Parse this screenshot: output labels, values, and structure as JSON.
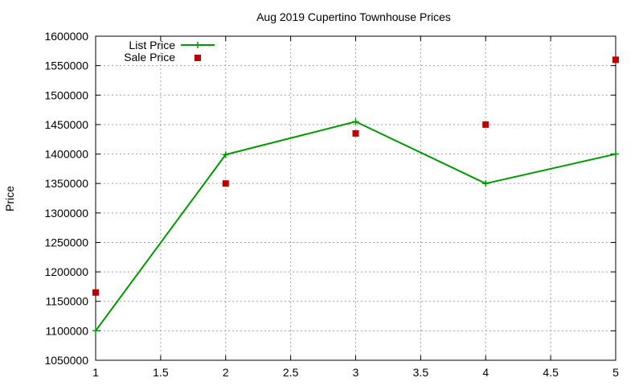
{
  "chart_data": {
    "type": "line",
    "title": "Aug 2019 Cupertino Townhouse Prices",
    "xlabel": "",
    "ylabel": "Price",
    "xlim": [
      1,
      5
    ],
    "ylim": [
      1050000,
      1600000
    ],
    "x_ticks": [
      "1",
      "1.5",
      "2",
      "2.5",
      "3",
      "3.5",
      "4",
      "4.5",
      "5"
    ],
    "y_ticks": [
      "1050000",
      "1100000",
      "1150000",
      "1200000",
      "1250000",
      "1300000",
      "1350000",
      "1400000",
      "1450000",
      "1500000",
      "1550000",
      "1600000"
    ],
    "grid": true,
    "legend_position": "top-left",
    "series": [
      {
        "name": "List Price",
        "type": "linespoints",
        "marker": "plus",
        "color": "#009900",
        "x": [
          1,
          2,
          3,
          4,
          5
        ],
        "y": [
          1100000,
          1399000,
          1455000,
          1350000,
          1400000
        ]
      },
      {
        "name": "Sale Price",
        "type": "points",
        "marker": "square",
        "color": "#c00000",
        "x": [
          1,
          2,
          3,
          4,
          5
        ],
        "y": [
          1165000,
          1350000,
          1435000,
          1450000,
          1560000
        ]
      }
    ]
  }
}
